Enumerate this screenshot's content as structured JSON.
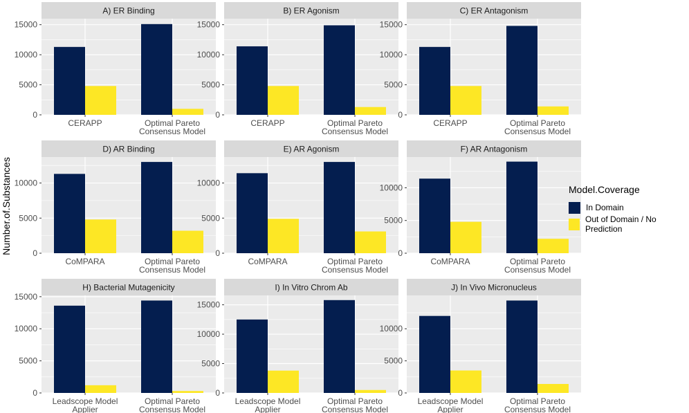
{
  "colors": {
    "in_domain": "#041e4f",
    "out_domain": "#fde725",
    "panel_bg": "#ebebeb",
    "strip_bg": "#d9d9d9",
    "grid": "#ffffff"
  },
  "ylabel": "Number.of.Substances",
  "legend": {
    "title": "Model.Coverage",
    "items": [
      {
        "label": "In Domain",
        "color": "#041e4f"
      },
      {
        "label": "Out of Domain / No Prediction",
        "color": "#fde725"
      }
    ]
  },
  "chart_data": [
    {
      "type": "bar",
      "title": "A) ER Binding",
      "categories": [
        "CERAPP",
        "Optimal Pareto\nConsensus Model"
      ],
      "ylim": [
        0,
        16000
      ],
      "yticks": [
        0,
        5000,
        10000,
        15000
      ],
      "series": [
        {
          "name": "In Domain",
          "values": [
            11300,
            15100
          ]
        },
        {
          "name": "Out of Domain / No Prediction",
          "values": [
            4800,
            1000
          ]
        }
      ]
    },
    {
      "type": "bar",
      "title": "B) ER Agonism",
      "categories": [
        "CERAPP",
        "Optimal Pareto\nConsensus Model"
      ],
      "ylim": [
        0,
        16000
      ],
      "yticks": [
        0,
        5000,
        10000,
        15000
      ],
      "series": [
        {
          "name": "In Domain",
          "values": [
            11400,
            14900
          ]
        },
        {
          "name": "Out of Domain / No Prediction",
          "values": [
            4800,
            1300
          ]
        }
      ]
    },
    {
      "type": "bar",
      "title": "C) ER Antagonism",
      "categories": [
        "CERAPP",
        "Optimal Pareto\nConsensus Model"
      ],
      "ylim": [
        0,
        16000
      ],
      "yticks": [
        0,
        5000,
        10000,
        15000
      ],
      "series": [
        {
          "name": "In Domain",
          "values": [
            11300,
            14800
          ]
        },
        {
          "name": "Out of Domain / No Prediction",
          "values": [
            4800,
            1400
          ]
        }
      ]
    },
    {
      "type": "bar",
      "title": "D) AR Binding",
      "categories": [
        "CoMPARA",
        "Optimal Pareto\nConsensus Model"
      ],
      "ylim": [
        0,
        13700
      ],
      "yticks": [
        0,
        5000,
        10000
      ],
      "series": [
        {
          "name": "In Domain",
          "values": [
            11300,
            13000
          ]
        },
        {
          "name": "Out of Domain / No Prediction",
          "values": [
            4800,
            3200
          ]
        }
      ]
    },
    {
      "type": "bar",
      "title": "E) AR Agonism",
      "categories": [
        "CoMPARA",
        "Optimal Pareto\nConsensus Model"
      ],
      "ylim": [
        0,
        13700
      ],
      "yticks": [
        0,
        5000,
        10000
      ],
      "series": [
        {
          "name": "In Domain",
          "values": [
            11400,
            13000
          ]
        },
        {
          "name": "Out of Domain / No Prediction",
          "values": [
            4900,
            3100
          ]
        }
      ]
    },
    {
      "type": "bar",
      "title": "F) AR Antagonism",
      "categories": [
        "CoMPARA",
        "Optimal Pareto\nConsensus Model"
      ],
      "ylim": [
        0,
        14700
      ],
      "yticks": [
        0,
        5000,
        10000
      ],
      "series": [
        {
          "name": "In Domain",
          "values": [
            11400,
            14000
          ]
        },
        {
          "name": "Out of Domain / No Prediction",
          "values": [
            4800,
            2200
          ]
        }
      ]
    },
    {
      "type": "bar",
      "title": "H) Bacterial Mutagenicity",
      "categories": [
        "Leadscope Model\nApplier",
        "Optimal Pareto\nConsensus Model"
      ],
      "ylim": [
        0,
        15200
      ],
      "yticks": [
        0,
        5000,
        10000,
        15000
      ],
      "series": [
        {
          "name": "In Domain",
          "values": [
            13600,
            14400
          ]
        },
        {
          "name": "Out of Domain / No Prediction",
          "values": [
            1200,
            300
          ]
        }
      ]
    },
    {
      "type": "bar",
      "title": "I) In Vitro Chrom Ab",
      "categories": [
        "Leadscope Model\nApplier",
        "Optimal Pareto\nConsensus Model"
      ],
      "ylim": [
        0,
        16600
      ],
      "yticks": [
        0,
        5000,
        10000,
        15000
      ],
      "series": [
        {
          "name": "In Domain",
          "values": [
            12500,
            15800
          ]
        },
        {
          "name": "Out of Domain / No Prediction",
          "values": [
            3800,
            500
          ]
        }
      ]
    },
    {
      "type": "bar",
      "title": "J) In Vivo Micronucleus",
      "categories": [
        "Leadscope Model\nApplier",
        "Optimal Pareto\nConsensus Model"
      ],
      "ylim": [
        0,
        15200
      ],
      "yticks": [
        0,
        5000,
        10000
      ],
      "series": [
        {
          "name": "In Domain",
          "values": [
            12000,
            14400
          ]
        },
        {
          "name": "Out of Domain / No Prediction",
          "values": [
            3500,
            1400
          ]
        }
      ]
    }
  ]
}
